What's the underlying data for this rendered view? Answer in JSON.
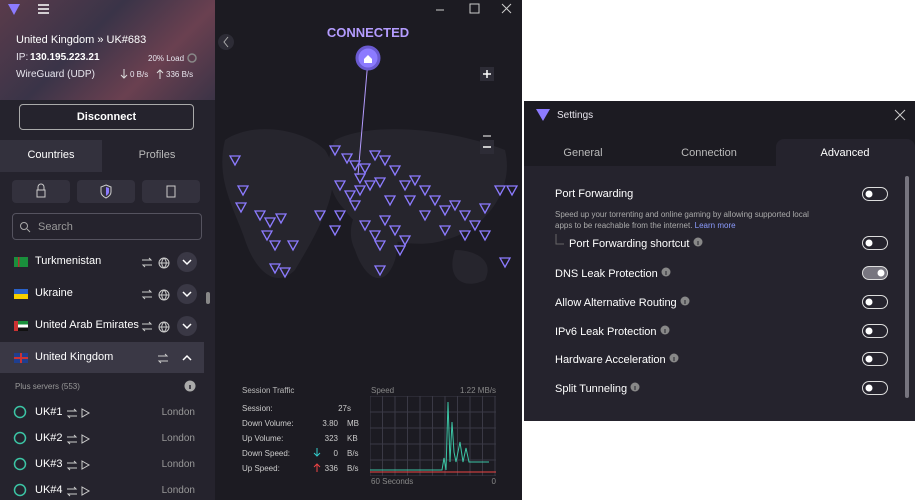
{
  "app": {
    "location": "United Kingdom » UK#683",
    "ip_label": "IP:",
    "ip": "130.195.223.21",
    "load": "20% Load",
    "protocol": "WireGuard (UDP)",
    "down_rate": "0 B/s",
    "up_rate": "336 B/s",
    "disconnect": "Disconnect",
    "tabs": [
      "Countries",
      "Profiles"
    ],
    "search_placeholder": "Search",
    "countries": [
      "Turkmenistan",
      "Ukraine",
      "United Arab Emirates",
      "United Kingdom"
    ],
    "plus_servers": "Plus servers (553)",
    "servers": [
      {
        "name": "UK#1",
        "city": "London"
      },
      {
        "name": "UK#2",
        "city": "London"
      },
      {
        "name": "UK#3",
        "city": "London"
      },
      {
        "name": "UK#4",
        "city": "London"
      }
    ]
  },
  "map": {
    "status": "CONNECTED"
  },
  "session_traffic": {
    "title": "Session Traffic",
    "rows": [
      {
        "label": "Session:",
        "value": "27s"
      },
      {
        "label": "Down Volume:",
        "value": "3.80",
        "unit": "MB"
      },
      {
        "label": "Up Volume:",
        "value": "323",
        "unit": "KB"
      },
      {
        "label": "Down Speed:",
        "value": "0",
        "unit": "B/s"
      },
      {
        "label": "Up Speed:",
        "value": "336",
        "unit": "B/s"
      }
    ]
  },
  "speed_graph": {
    "title": "Speed",
    "max": "1.22 MB/s",
    "x_start": "60 Seconds",
    "x_end": "0"
  },
  "settings": {
    "title": "Settings",
    "tabs": [
      "General",
      "Connection",
      "Advanced"
    ],
    "description": "Speed up your torrenting and online gaming by allowing supported local apps to be reachable from the internet.",
    "learn_more": "Learn more",
    "options": [
      {
        "label": "Port Forwarding",
        "on": false
      },
      {
        "label": "Port Forwarding shortcut",
        "on": false
      },
      {
        "label": "DNS Leak Protection",
        "on": true
      },
      {
        "label": "Allow Alternative Routing",
        "on": false
      },
      {
        "label": "IPv6 Leak Protection",
        "on": false
      },
      {
        "label": "Hardware Acceleration",
        "on": false
      },
      {
        "label": "Split Tunneling",
        "on": false
      }
    ]
  }
}
